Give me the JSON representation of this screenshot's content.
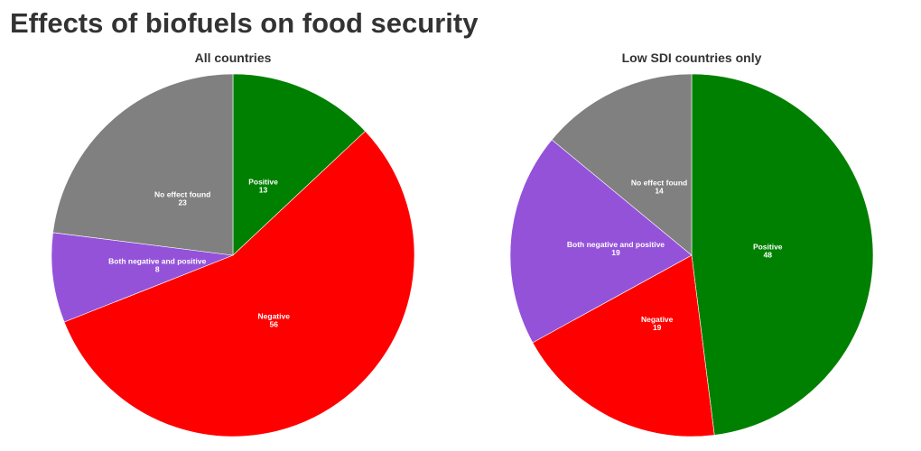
{
  "title": "Effects of biofuels on food security",
  "colors": {
    "positive": "#008000",
    "negative": "#ff0000",
    "both": "#9452d9",
    "none": "#808080"
  },
  "chart_data": [
    {
      "type": "pie",
      "title": "All countries",
      "slices": [
        {
          "label": "Positive",
          "value": 13,
          "color": "#008000"
        },
        {
          "label": "Negative",
          "value": 56,
          "color": "#ff0000"
        },
        {
          "label": "Both negative and positive",
          "value": 8,
          "color": "#9452d9"
        },
        {
          "label": "No effect found",
          "value": 23,
          "color": "#808080"
        }
      ]
    },
    {
      "type": "pie",
      "title": "Low SDI countries only",
      "slices": [
        {
          "label": "Positive",
          "value": 48,
          "color": "#008000"
        },
        {
          "label": "Negative",
          "value": 19,
          "color": "#ff0000"
        },
        {
          "label": "Both negative and positive",
          "value": 19,
          "color": "#9452d9"
        },
        {
          "label": "No effect found",
          "value": 14,
          "color": "#808080"
        }
      ]
    }
  ]
}
